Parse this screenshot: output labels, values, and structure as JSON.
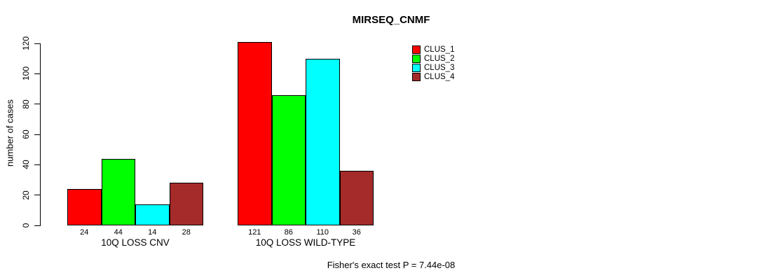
{
  "chart_data": {
    "type": "bar",
    "title": "MIRSEQ_CNMF",
    "ylabel": "number of cases",
    "ylim": [
      0,
      120
    ],
    "yticks": [
      0,
      20,
      40,
      60,
      80,
      100,
      120
    ],
    "grid": false,
    "legend_position": "right",
    "categories": [
      "10Q LOSS CNV",
      "10Q LOSS WILD-TYPE"
    ],
    "series": [
      {
        "name": "CLUS_1",
        "color": "#ff0000",
        "values": [
          24,
          121
        ]
      },
      {
        "name": "CLUS_2",
        "color": "#00ff00",
        "values": [
          44,
          86
        ]
      },
      {
        "name": "CLUS_3",
        "color": "#00ffff",
        "values": [
          14,
          110
        ]
      },
      {
        "name": "CLUS_4",
        "color": "#a52a2a",
        "values": [
          28,
          36
        ]
      }
    ],
    "groups": [
      {
        "label": "10Q LOSS CNV",
        "values": [
          24,
          44,
          14,
          28
        ]
      },
      {
        "label": "10Q LOSS WILD-TYPE",
        "values": [
          121,
          86,
          110,
          36
        ]
      }
    ],
    "annotation": "Fisher's exact test P = 7.44e-08"
  }
}
